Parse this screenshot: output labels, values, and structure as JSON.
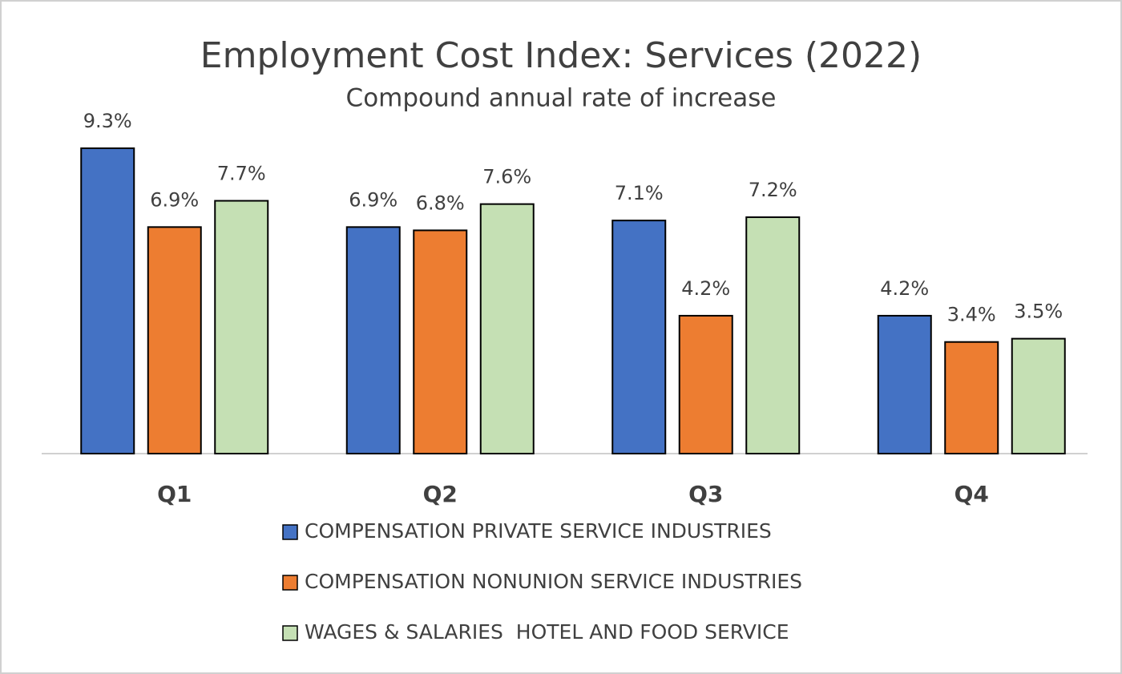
{
  "chart_data": {
    "type": "bar",
    "title": "Employment Cost Index: Services (2022)",
    "subtitle": "Compound annual rate of increase",
    "categories": [
      "Q1",
      "Q2",
      "Q3",
      "Q4"
    ],
    "series": [
      {
        "name": "COMPENSATION PRIVATE SERVICE INDUSTRIES",
        "color": "#4472c4",
        "values": [
          9.3,
          6.9,
          7.1,
          4.2
        ],
        "value_labels": [
          "9.3%",
          "6.9%",
          "7.1%",
          "4.2%"
        ]
      },
      {
        "name": "COMPENSATION NONUNION SERVICE INDUSTRIES",
        "color": "#ed7d31",
        "values": [
          6.9,
          6.8,
          4.2,
          3.4
        ],
        "value_labels": [
          "6.9%",
          "6.8%",
          "4.2%",
          "3.4%"
        ]
      },
      {
        "name": "WAGES & SALARIES  HOTEL AND FOOD SERVICE",
        "color": "#c5e0b4",
        "values": [
          7.7,
          7.6,
          7.2,
          3.5
        ],
        "value_labels": [
          "7.7%",
          "7.6%",
          "7.2%",
          "3.5%"
        ]
      }
    ],
    "legend": "bottom"
  }
}
